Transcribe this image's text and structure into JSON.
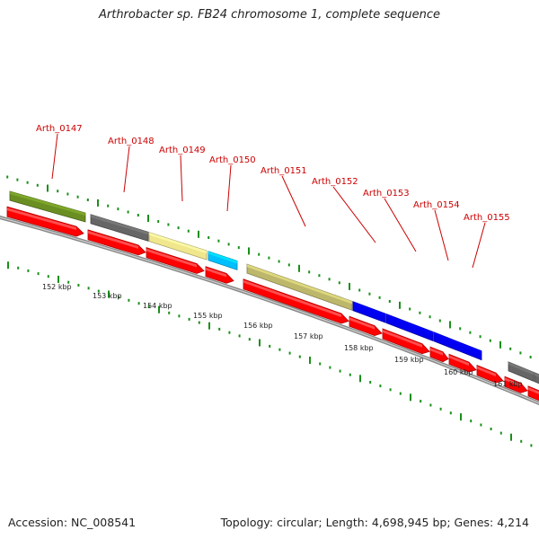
{
  "title": "Arthrobacter sp. FB24 chromosome 1, complete sequence",
  "footer": {
    "accession": "Accession: NC_008541",
    "summary": "Topology: circular; Length: 4,698,945 bp; Genes: 4,214"
  },
  "gene_labels": [
    "Arth_0147",
    "Arth_0148",
    "Arth_0149",
    "Arth_0150",
    "Arth_0151",
    "Arth_0152",
    "Arth_0153",
    "Arth_0154",
    "Arth_0155"
  ],
  "kbp_labels": [
    "152 kbp",
    "153 kbp",
    "154 kbp",
    "155 kbp",
    "156 kbp",
    "157 kbp",
    "158 kbp",
    "159 kbp",
    "160 kbp",
    "161 kbp"
  ],
  "colors": {
    "cds_arrow": "#ff0000",
    "backbone": "#999999",
    "tick": "#1a8f1a",
    "label_red": "#cc0000",
    "olive": "#6b8e23",
    "gray": "#666666",
    "yellow": "#f0e68c",
    "cyan": "#00bfff",
    "khaki": "#bdb76b",
    "blue": "#0000ee"
  }
}
